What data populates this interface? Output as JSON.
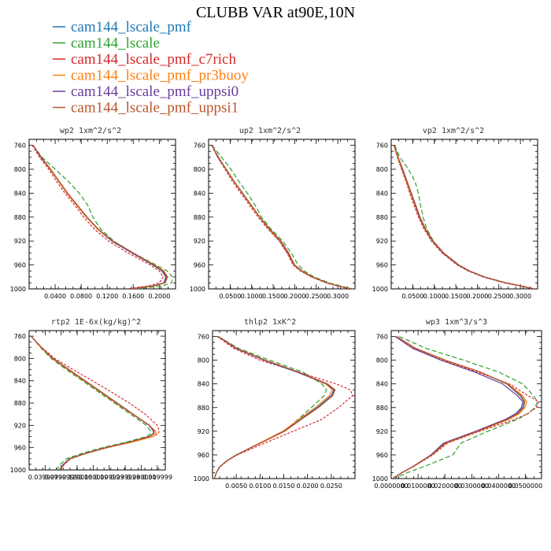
{
  "figure": {
    "title": "CLUBB VAR at90E,10N",
    "legend": [
      {
        "name": "cam144_lscale_pmf",
        "color": "#1f77b4"
      },
      {
        "name": "cam144_lscale",
        "color": "#2ca02c"
      },
      {
        "name": "cam144_lscale_pmf_c7rich",
        "color": "#d62728"
      },
      {
        "name": "cam144_lscale_pmf_pr3buoy",
        "color": "#ff7f0e"
      },
      {
        "name": "cam144_lscale_pmf_uppsi0",
        "color": "#6a3d9a"
      },
      {
        "name": "cam144_lscale_pmf_uppsi1",
        "color": "#b5562b"
      }
    ]
  },
  "chart_data": [
    {
      "type": "line",
      "title": "wp2 1xm^2/s^2",
      "ylim": [
        1000,
        750
      ],
      "yticks": [
        "760",
        "800",
        "840",
        "880",
        "920",
        "960",
        "1000"
      ],
      "xlim": [
        0.0,
        0.225
      ],
      "xticks": [
        "0.0400",
        "0.0800",
        "0.1200",
        "0.1600",
        "0.2000"
      ],
      "xtick_values": [
        0.04,
        0.08,
        0.12,
        0.16,
        0.2
      ],
      "y": [
        760,
        780,
        800,
        820,
        840,
        860,
        880,
        900,
        920,
        940,
        960,
        970,
        980,
        990,
        995,
        1000
      ],
      "series": [
        {
          "values": [
            0.006,
            0.018,
            0.032,
            0.045,
            0.058,
            0.073,
            0.088,
            0.105,
            0.127,
            0.158,
            0.19,
            0.204,
            0.21,
            0.207,
            0.19,
            0.155
          ]
        },
        {
          "values": [
            0.006,
            0.02,
            0.04,
            0.06,
            0.077,
            0.09,
            0.098,
            0.11,
            0.13,
            0.16,
            0.195,
            0.212,
            0.22,
            0.219,
            0.205,
            0.165
          ]
        },
        {
          "values": [
            0.005,
            0.016,
            0.03,
            0.042,
            0.055,
            0.07,
            0.084,
            0.1,
            0.122,
            0.152,
            0.186,
            0.2,
            0.206,
            0.2,
            0.184,
            0.15
          ]
        },
        {
          "values": [
            0.006,
            0.018,
            0.032,
            0.045,
            0.058,
            0.073,
            0.088,
            0.105,
            0.128,
            0.16,
            0.193,
            0.207,
            0.213,
            0.209,
            0.193,
            0.158
          ]
        },
        {
          "values": [
            0.006,
            0.018,
            0.033,
            0.046,
            0.059,
            0.074,
            0.089,
            0.106,
            0.128,
            0.158,
            0.191,
            0.205,
            0.211,
            0.208,
            0.191,
            0.156
          ]
        },
        {
          "values": [
            0.006,
            0.019,
            0.033,
            0.046,
            0.059,
            0.074,
            0.089,
            0.106,
            0.129,
            0.16,
            0.192,
            0.206,
            0.212,
            0.209,
            0.192,
            0.157
          ]
        }
      ]
    },
    {
      "type": "line",
      "title": "up2 1xm^2/s^2",
      "ylim": [
        1000,
        750
      ],
      "yticks": [
        "760",
        "800",
        "840",
        "880",
        "920",
        "960",
        "1000"
      ],
      "xlim": [
        0.0,
        0.34
      ],
      "xticks": [
        "0.0500",
        "0.1000",
        "0.1500",
        "0.2000",
        "0.2500",
        "0.3000"
      ],
      "xtick_values": [
        0.05,
        0.1,
        0.15,
        0.2,
        0.25,
        0.3
      ],
      "y": [
        760,
        780,
        800,
        820,
        840,
        860,
        880,
        900,
        920,
        940,
        960,
        970,
        980,
        990,
        995,
        1000
      ],
      "series": [
        {
          "values": [
            0.008,
            0.022,
            0.04,
            0.058,
            0.078,
            0.098,
            0.118,
            0.14,
            0.165,
            0.183,
            0.198,
            0.215,
            0.24,
            0.275,
            0.3,
            0.33
          ]
        },
        {
          "values": [
            0.008,
            0.03,
            0.052,
            0.07,
            0.09,
            0.108,
            0.123,
            0.145,
            0.172,
            0.192,
            0.208,
            0.222,
            0.245,
            0.28,
            0.305,
            0.335
          ]
        },
        {
          "values": [
            0.007,
            0.021,
            0.038,
            0.055,
            0.075,
            0.095,
            0.115,
            0.138,
            0.164,
            0.182,
            0.196,
            0.213,
            0.238,
            0.273,
            0.298,
            0.328
          ]
        },
        {
          "values": [
            0.008,
            0.022,
            0.04,
            0.058,
            0.078,
            0.098,
            0.118,
            0.141,
            0.166,
            0.184,
            0.198,
            0.215,
            0.24,
            0.275,
            0.3,
            0.33
          ]
        },
        {
          "values": [
            0.008,
            0.022,
            0.041,
            0.059,
            0.079,
            0.099,
            0.119,
            0.142,
            0.167,
            0.185,
            0.199,
            0.216,
            0.241,
            0.276,
            0.301,
            0.331
          ]
        },
        {
          "values": [
            0.008,
            0.023,
            0.041,
            0.059,
            0.079,
            0.099,
            0.119,
            0.142,
            0.168,
            0.186,
            0.2,
            0.217,
            0.241,
            0.276,
            0.301,
            0.331
          ]
        }
      ]
    },
    {
      "type": "line",
      "title": "vp2 1xm^2/s^2",
      "ylim": [
        1000,
        750
      ],
      "yticks": [
        "760",
        "800",
        "840",
        "880",
        "920",
        "960",
        "1000"
      ],
      "xlim": [
        0.0,
        0.34
      ],
      "xticks": [
        "0.0500",
        "0.1000",
        "0.1500",
        "0.2000",
        "0.2500",
        "0.3000"
      ],
      "xtick_values": [
        0.05,
        0.1,
        0.15,
        0.2,
        0.25,
        0.3
      ],
      "y": [
        760,
        780,
        800,
        820,
        840,
        860,
        880,
        900,
        920,
        940,
        960,
        970,
        980,
        990,
        995,
        1000
      ],
      "series": [
        {
          "values": [
            0.007,
            0.015,
            0.025,
            0.035,
            0.045,
            0.055,
            0.065,
            0.078,
            0.095,
            0.12,
            0.155,
            0.18,
            0.215,
            0.265,
            0.3,
            0.33
          ]
        },
        {
          "values": [
            0.008,
            0.02,
            0.04,
            0.055,
            0.063,
            0.068,
            0.074,
            0.083,
            0.098,
            0.122,
            0.157,
            0.182,
            0.217,
            0.267,
            0.302,
            0.332
          ]
        },
        {
          "values": [
            0.006,
            0.014,
            0.024,
            0.034,
            0.043,
            0.053,
            0.063,
            0.076,
            0.093,
            0.118,
            0.153,
            0.178,
            0.213,
            0.263,
            0.298,
            0.328
          ]
        },
        {
          "values": [
            0.007,
            0.015,
            0.025,
            0.035,
            0.045,
            0.055,
            0.065,
            0.078,
            0.095,
            0.121,
            0.156,
            0.181,
            0.216,
            0.266,
            0.301,
            0.331
          ]
        },
        {
          "values": [
            0.007,
            0.016,
            0.026,
            0.036,
            0.046,
            0.056,
            0.066,
            0.079,
            0.096,
            0.121,
            0.156,
            0.181,
            0.216,
            0.266,
            0.301,
            0.331
          ]
        },
        {
          "values": [
            0.007,
            0.016,
            0.027,
            0.037,
            0.047,
            0.057,
            0.067,
            0.08,
            0.097,
            0.122,
            0.157,
            0.182,
            0.217,
            0.267,
            0.302,
            0.332
          ]
        }
      ]
    },
    {
      "type": "line",
      "title": "rtp2 1E-6x(kg/kg)^2",
      "ylim": [
        1000,
        750
      ],
      "yticks": [
        "760",
        "800",
        "840",
        "880",
        "920",
        "960",
        "1000"
      ],
      "xlim": [
        0.0,
        0.34
      ],
      "xticks": [
        "0.0399999",
        "0.0799999",
        "0.120000",
        "0.160000",
        "0.199999",
        "0.239999",
        "0.280000",
        "0.319999"
      ],
      "xtick_values": [
        0.04,
        0.08,
        0.12,
        0.16,
        0.2,
        0.24,
        0.28,
        0.32
      ],
      "y": [
        760,
        780,
        800,
        820,
        840,
        860,
        880,
        900,
        920,
        930,
        935,
        940,
        950,
        960,
        970,
        980,
        990,
        1000
      ],
      "series": [
        {
          "values": [
            0.005,
            0.03,
            0.06,
            0.1,
            0.14,
            0.18,
            0.22,
            0.26,
            0.3,
            0.31,
            0.31,
            0.3,
            0.25,
            0.19,
            0.14,
            0.1,
            0.085,
            0.075
          ]
        },
        {
          "values": [
            0.005,
            0.028,
            0.055,
            0.093,
            0.133,
            0.173,
            0.213,
            0.253,
            0.293,
            0.303,
            0.303,
            0.293,
            0.243,
            0.183,
            0.133,
            0.093,
            0.078,
            0.068
          ]
        },
        {
          "values": [
            0.005,
            0.031,
            0.064,
            0.11,
            0.158,
            0.205,
            0.25,
            0.29,
            0.32,
            0.325,
            0.322,
            0.31,
            0.258,
            0.196,
            0.145,
            0.104,
            0.088,
            0.078
          ]
        },
        {
          "values": [
            0.005,
            0.029,
            0.058,
            0.097,
            0.137,
            0.177,
            0.217,
            0.258,
            0.3,
            0.315,
            0.318,
            0.31,
            0.257,
            0.195,
            0.143,
            0.102,
            0.086,
            0.076
          ]
        },
        {
          "values": [
            0.005,
            0.03,
            0.059,
            0.099,
            0.139,
            0.179,
            0.219,
            0.259,
            0.3,
            0.311,
            0.311,
            0.301,
            0.251,
            0.191,
            0.141,
            0.101,
            0.086,
            0.076
          ]
        },
        {
          "values": [
            0.005,
            0.03,
            0.06,
            0.1,
            0.14,
            0.18,
            0.22,
            0.26,
            0.301,
            0.312,
            0.312,
            0.302,
            0.252,
            0.192,
            0.142,
            0.102,
            0.087,
            0.077
          ]
        }
      ]
    },
    {
      "type": "line",
      "title": "thlp2 1xK^2",
      "ylim": [
        1000,
        750
      ],
      "yticks": [
        "760",
        "800",
        "840",
        "880",
        "920",
        "960",
        "1000"
      ],
      "xlim": [
        0.0,
        0.03
      ],
      "xticks": [
        "0.0050",
        "0.0100",
        "0.0150",
        "0.0200",
        "0.0250"
      ],
      "xtick_values": [
        0.005,
        0.01,
        0.015,
        0.02,
        0.025
      ],
      "y": [
        760,
        780,
        800,
        820,
        840,
        850,
        860,
        880,
        900,
        920,
        940,
        960,
        970,
        980,
        990,
        1000
      ],
      "series": [
        {
          "values": [
            0.0012,
            0.005,
            0.011,
            0.018,
            0.024,
            0.0255,
            0.025,
            0.022,
            0.0185,
            0.015,
            0.01,
            0.005,
            0.003,
            0.0015,
            0.0008,
            0.0004
          ]
        },
        {
          "values": [
            0.0012,
            0.0055,
            0.012,
            0.019,
            0.023,
            0.024,
            0.0235,
            0.0208,
            0.018,
            0.015,
            0.01,
            0.005,
            0.003,
            0.0015,
            0.0008,
            0.0004
          ]
        },
        {
          "values": [
            0.001,
            0.0045,
            0.01,
            0.018,
            0.026,
            0.029,
            0.0295,
            0.0265,
            0.023,
            0.017,
            0.011,
            0.0052,
            0.0031,
            0.0016,
            0.0008,
            0.0004
          ]
        },
        {
          "values": [
            0.0012,
            0.005,
            0.011,
            0.0178,
            0.0238,
            0.0252,
            0.0246,
            0.0216,
            0.0182,
            0.0148,
            0.0099,
            0.005,
            0.003,
            0.0015,
            0.0008,
            0.0004
          ]
        },
        {
          "values": [
            0.0012,
            0.0049,
            0.0108,
            0.0177,
            0.024,
            0.0257,
            0.0252,
            0.0222,
            0.0186,
            0.0151,
            0.0101,
            0.005,
            0.003,
            0.0015,
            0.0008,
            0.0004
          ]
        },
        {
          "values": [
            0.0013,
            0.0051,
            0.0111,
            0.0181,
            0.0242,
            0.0258,
            0.0253,
            0.0223,
            0.0187,
            0.0152,
            0.0101,
            0.0051,
            0.0031,
            0.0015,
            0.0008,
            0.0004
          ]
        }
      ]
    },
    {
      "type": "line",
      "title": "wp3 1xm^3/s^3",
      "ylim": [
        1000,
        750
      ],
      "yticks": [
        "760",
        "800",
        "840",
        "880",
        "920",
        "960",
        "1000"
      ],
      "xlim": [
        0.0,
        0.056
      ],
      "xticks": [
        "0.0000000",
        "0.0100000",
        "0.0200000",
        "0.0300000",
        "0.0400000",
        "0.0500000"
      ],
      "xtick_values": [
        0.0,
        0.01,
        0.02,
        0.03,
        0.04,
        0.05
      ],
      "y": [
        760,
        780,
        800,
        820,
        840,
        860,
        870,
        880,
        890,
        900,
        920,
        940,
        960,
        980,
        990,
        1000
      ],
      "series": [
        {
          "values": [
            0.002,
            0.009,
            0.02,
            0.033,
            0.043,
            0.048,
            0.0495,
            0.049,
            0.047,
            0.043,
            0.032,
            0.02,
            0.015,
            0.008,
            0.004,
            0.0005
          ]
        },
        {
          "values": [
            0.003,
            0.013,
            0.027,
            0.04,
            0.049,
            0.053,
            0.0545,
            0.0535,
            0.051,
            0.047,
            0.036,
            0.026,
            0.023,
            0.012,
            0.006,
            0.001
          ]
        },
        {
          "values": [
            0.002,
            0.0085,
            0.019,
            0.032,
            0.044,
            0.051,
            0.055,
            0.054,
            0.051,
            0.046,
            0.033,
            0.021,
            0.0155,
            0.0082,
            0.0041,
            0.0005
          ]
        },
        {
          "values": [
            0.002,
            0.009,
            0.02,
            0.033,
            0.0435,
            0.049,
            0.0505,
            0.0498,
            0.0478,
            0.0438,
            0.0325,
            0.0205,
            0.0152,
            0.0081,
            0.004,
            0.0005
          ]
        },
        {
          "values": [
            0.0015,
            0.008,
            0.0185,
            0.031,
            0.0415,
            0.047,
            0.049,
            0.0485,
            0.0465,
            0.0425,
            0.0315,
            0.0195,
            0.0148,
            0.0079,
            0.0039,
            0.0005
          ]
        },
        {
          "values": [
            0.002,
            0.0092,
            0.0202,
            0.0332,
            0.0432,
            0.0484,
            0.0498,
            0.0493,
            0.0473,
            0.0433,
            0.0322,
            0.0202,
            0.0151,
            0.008,
            0.004,
            0.0005
          ]
        }
      ]
    }
  ]
}
